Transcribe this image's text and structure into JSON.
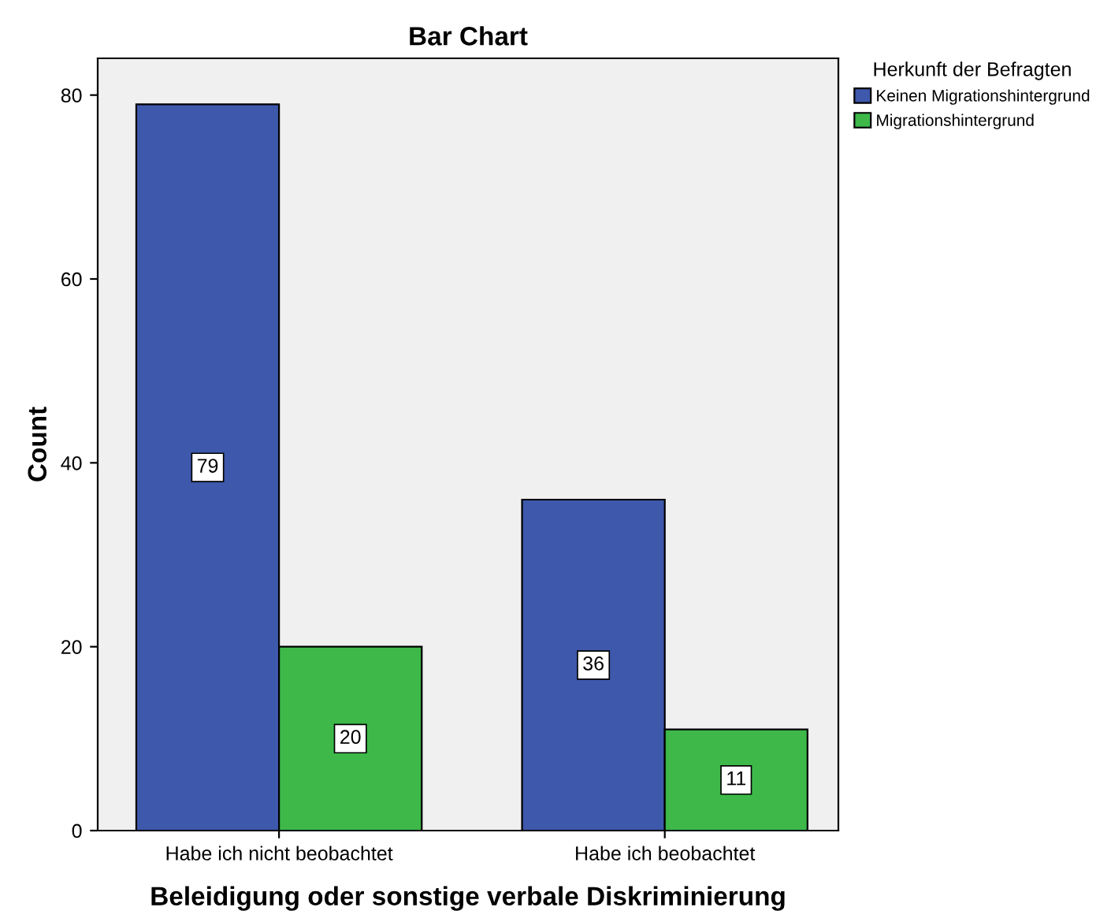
{
  "chart_data": {
    "type": "bar",
    "title": "Bar Chart",
    "xlabel": "Beleidigung oder sonstige verbale Diskriminierung",
    "ylabel": "Count",
    "legend_title": "Herkunft der Befragten",
    "categories": [
      "Habe ich nicht beobachtet",
      "Habe ich beobachtet"
    ],
    "series": [
      {
        "name": "Keinen Migrationshintergrund",
        "color": "#3e58ac",
        "values": [
          79,
          36
        ]
      },
      {
        "name": "Migrationshintergrund",
        "color": "#3db849",
        "values": [
          20,
          11
        ]
      }
    ],
    "ylim": [
      0,
      84
    ],
    "yticks": [
      0,
      20,
      40,
      60,
      80
    ],
    "data_labels": true,
    "legend": "right",
    "grid": false
  }
}
